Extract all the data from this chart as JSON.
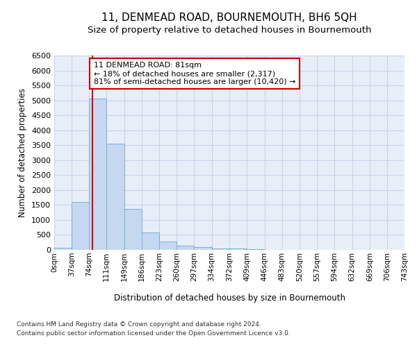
{
  "title": "11, DENMEAD ROAD, BOURNEMOUTH, BH6 5QH",
  "subtitle": "Size of property relative to detached houses in Bournemouth",
  "xlabel": "Distribution of detached houses by size in Bournemouth",
  "ylabel": "Number of detached properties",
  "footer_line1": "Contains HM Land Registry data © Crown copyright and database right 2024.",
  "footer_line2": "Contains public sector information licensed under the Open Government Licence v3.0.",
  "bin_edges": [
    0,
    37,
    74,
    111,
    149,
    186,
    223,
    260,
    297,
    334,
    372,
    409,
    446,
    483,
    520,
    557,
    594,
    632,
    669,
    706,
    743
  ],
  "bin_labels": [
    "0sqm",
    "37sqm",
    "74sqm",
    "111sqm",
    "149sqm",
    "186sqm",
    "223sqm",
    "260sqm",
    "297sqm",
    "334sqm",
    "372sqm",
    "409sqm",
    "446sqm",
    "483sqm",
    "520sqm",
    "557sqm",
    "594sqm",
    "632sqm",
    "669sqm",
    "706sqm",
    "743sqm"
  ],
  "bar_heights": [
    60,
    1600,
    5050,
    3550,
    1380,
    590,
    290,
    135,
    95,
    55,
    50,
    30,
    5,
    0,
    0,
    0,
    0,
    0,
    0,
    0
  ],
  "bar_color": "#c5d8f0",
  "bar_edge_color": "#7aafd4",
  "property_line_x": 81,
  "property_line_color": "#cc0000",
  "annotation_line1": "11 DENMEAD ROAD: 81sqm",
  "annotation_line2": "← 18% of detached houses are smaller (2,317)",
  "annotation_line3": "81% of semi-detached houses are larger (10,420) →",
  "annotation_box_color": "#cc0000",
  "ylim": [
    0,
    6500
  ],
  "yticks": [
    0,
    500,
    1000,
    1500,
    2000,
    2500,
    3000,
    3500,
    4000,
    4500,
    5000,
    5500,
    6000,
    6500
  ],
  "grid_color": "#c8d4e8",
  "background_color": "#e8eef8",
  "title_fontsize": 11,
  "subtitle_fontsize": 9.5
}
